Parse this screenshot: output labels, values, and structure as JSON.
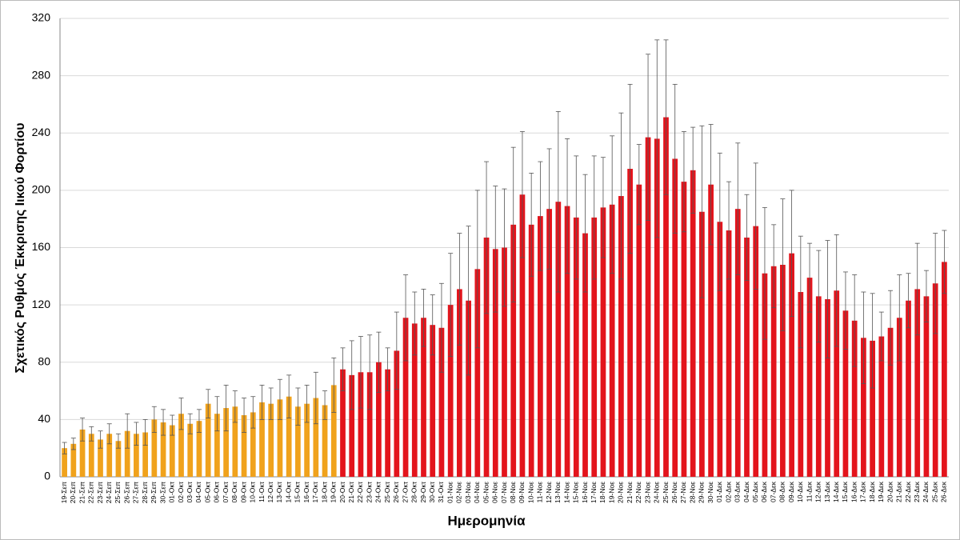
{
  "chart_data": {
    "type": "bar",
    "y_label": "Σχετικός Ρυθμός Έκκρισης Ιικού Φορτίου",
    "x_label": "Ημερομηνία",
    "categories": [
      "19-Σεπ",
      "20-Σεπ",
      "21-Σεπ",
      "22-Σεπ",
      "23-Σεπ",
      "24-Σεπ",
      "25-Σεπ",
      "26-Σεπ",
      "27-Σεπ",
      "28-Σεπ",
      "29-Σεπ",
      "30-Σεπ",
      "01-Οκτ",
      "02-Οκτ",
      "03-Οκτ",
      "04-Οκτ",
      "05-Οκτ",
      "06-Οκτ",
      "07-Οκτ",
      "08-Οκτ",
      "09-Οκτ",
      "10-Οκτ",
      "11-Οκτ",
      "12-Οκτ",
      "13-Οκτ",
      "14-Οκτ",
      "15-Οκτ",
      "16-Οκτ",
      "17-Οκτ",
      "18-Οκτ",
      "19-Οκτ",
      "20-Οκτ",
      "21-Οκτ",
      "22-Οκτ",
      "23-Οκτ",
      "24-Οκτ",
      "25-Οκτ",
      "26-Οκτ",
      "27-Οκτ",
      "28-Οκτ",
      "29-Οκτ",
      "30-Οκτ",
      "31-Οκτ",
      "01-Νοε",
      "02-Νοε",
      "03-Νοε",
      "04-Νοε",
      "05-Νοε",
      "06-Νοε",
      "07-Νοε",
      "08-Νοε",
      "09-Νοε",
      "10-Νοε",
      "11-Νοε",
      "12-Νοε",
      "13-Νοε",
      "14-Νοε",
      "15-Νοε",
      "16-Νοε",
      "17-Νοε",
      "18-Νοε",
      "19-Νοε",
      "20-Νοε",
      "21-Νοε",
      "22-Νοε",
      "23-Νοε",
      "24-Νοε",
      "25-Νοε",
      "26-Νοε",
      "27-Νοε",
      "28-Νοε",
      "29-Νοε",
      "30-Νοε",
      "01-Δεκ",
      "02-Δεκ",
      "03-Δεκ",
      "04-Δεκ",
      "05-Δεκ",
      "06-Δεκ",
      "07-Δεκ",
      "08-Δεκ",
      "09-Δεκ",
      "10-Δεκ",
      "11-Δεκ",
      "12-Δεκ",
      "13-Δεκ",
      "14-Δεκ",
      "15-Δεκ",
      "16-Δεκ",
      "17-Δεκ",
      "18-Δεκ",
      "19-Δεκ",
      "20-Δεκ",
      "21-Δεκ",
      "22-Δεκ",
      "23-Δεκ",
      "24-Δεκ",
      "25-Δεκ",
      "26-Δεκ"
    ],
    "values": [
      20,
      23,
      33,
      30,
      26,
      30,
      25,
      32,
      30,
      31,
      40,
      38,
      36,
      44,
      37,
      39,
      51,
      44,
      48,
      49,
      43,
      45,
      52,
      51,
      54,
      56,
      49,
      51,
      55,
      50,
      64,
      75,
      71,
      73,
      73,
      80,
      75,
      88,
      111,
      107,
      111,
      106,
      104,
      120,
      131,
      123,
      145,
      167,
      159,
      160,
      176,
      197,
      176,
      182,
      187,
      192,
      189,
      181,
      170,
      181,
      188,
      190,
      196,
      215,
      204,
      237,
      236,
      251,
      222,
      206,
      214,
      185,
      204,
      178,
      172,
      187,
      167,
      175,
      142,
      147,
      148,
      156,
      129,
      139,
      126,
      124,
      130,
      116,
      109,
      97,
      95,
      98,
      104,
      111,
      123,
      131,
      126,
      135,
      150
    ],
    "errors": [
      4,
      4,
      8,
      5,
      6,
      7,
      5,
      12,
      8,
      9,
      9,
      9,
      7,
      11,
      7,
      8,
      10,
      12,
      16,
      11,
      12,
      11,
      12,
      11,
      14,
      15,
      13,
      13,
      18,
      10,
      19,
      15,
      24,
      25,
      26,
      21,
      15,
      27,
      30,
      22,
      20,
      21,
      31,
      36,
      39,
      52,
      55,
      53,
      44,
      41,
      54,
      44,
      36,
      38,
      42,
      63,
      47,
      43,
      41,
      43,
      35,
      48,
      58,
      59,
      28,
      58,
      69,
      54,
      52,
      35,
      30,
      60,
      42,
      48,
      34,
      46,
      30,
      44,
      46,
      29,
      46,
      44,
      39,
      24,
      32,
      41,
      39,
      27,
      32,
      32,
      33,
      17,
      26,
      30,
      19,
      32,
      18,
      35,
      22
    ],
    "colors": [
      "#f0a21c",
      "#f0a21c",
      "#f0a21c",
      "#f0a21c",
      "#f0a21c",
      "#f0a21c",
      "#f0a21c",
      "#f0a21c",
      "#f0a21c",
      "#f0a21c",
      "#f0a21c",
      "#f0a21c",
      "#f0a21c",
      "#f0a21c",
      "#f0a21c",
      "#f0a21c",
      "#f0a21c",
      "#f0a21c",
      "#f0a21c",
      "#f0a21c",
      "#f0a21c",
      "#f0a21c",
      "#f0a21c",
      "#f0a21c",
      "#f0a21c",
      "#f0a21c",
      "#f0a21c",
      "#f0a21c",
      "#f0a21c",
      "#f0a21c",
      "#f0a21c",
      "#e3141c",
      "#e3141c",
      "#e3141c",
      "#e3141c",
      "#e3141c",
      "#e3141c",
      "#e3141c",
      "#e3141c",
      "#e3141c",
      "#e3141c",
      "#e3141c",
      "#e3141c",
      "#e3141c",
      "#e3141c",
      "#e3141c",
      "#e3141c",
      "#e3141c",
      "#e3141c",
      "#e3141c",
      "#e3141c",
      "#e3141c",
      "#e3141c",
      "#e3141c",
      "#e3141c",
      "#e3141c",
      "#e3141c",
      "#e3141c",
      "#e3141c",
      "#e3141c",
      "#e3141c",
      "#e3141c",
      "#e3141c",
      "#e3141c",
      "#e3141c",
      "#e3141c",
      "#e3141c",
      "#e3141c",
      "#e3141c",
      "#e3141c",
      "#e3141c",
      "#e3141c",
      "#e3141c",
      "#e3141c",
      "#e3141c",
      "#e3141c",
      "#e3141c",
      "#e3141c",
      "#e3141c",
      "#e3141c",
      "#e3141c",
      "#e3141c",
      "#e3141c",
      "#e3141c",
      "#e3141c",
      "#e3141c",
      "#e3141c",
      "#e3141c",
      "#e3141c",
      "#e3141c",
      "#e3141c",
      "#e3141c",
      "#e3141c",
      "#e3141c",
      "#e3141c",
      "#e3141c",
      "#e3141c",
      "#e3141c",
      "#e3141c"
    ],
    "ylim": [
      0,
      320
    ],
    "yticks": [
      0,
      40,
      80,
      120,
      160,
      200,
      240,
      280,
      320
    ],
    "grid": true
  }
}
